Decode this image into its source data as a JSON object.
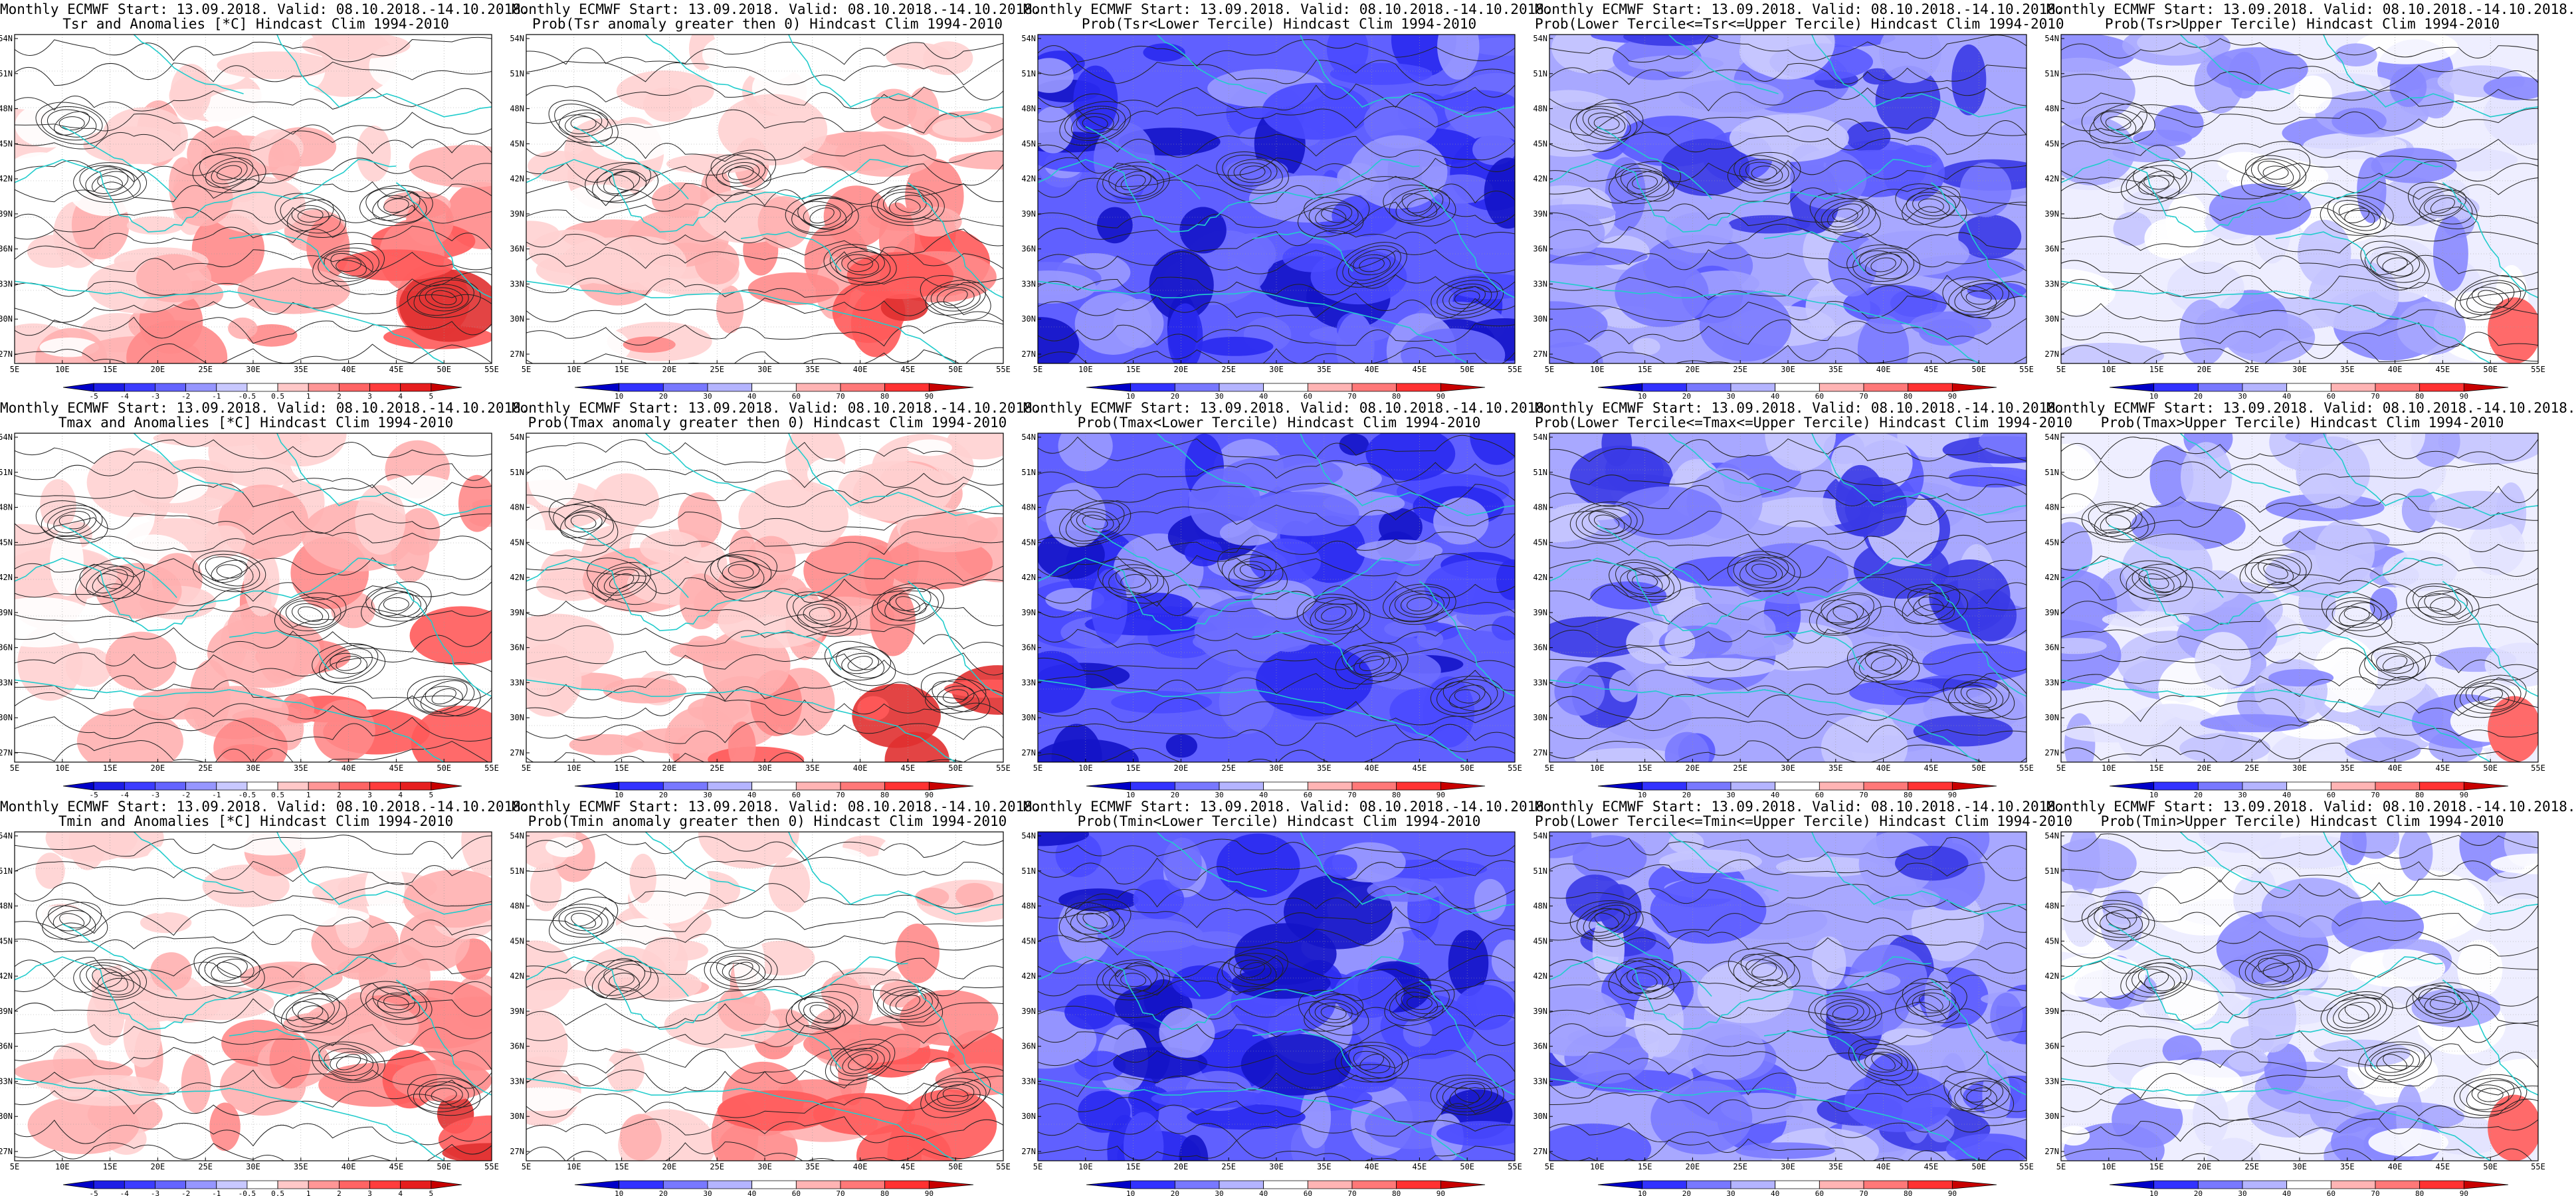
{
  "lat_ticks": [
    "54N",
    "51N",
    "48N",
    "45N",
    "42N",
    "39N",
    "36N",
    "33N",
    "30N",
    "27N"
  ],
  "lon_ticks": [
    "5E",
    "10E",
    "15E",
    "20E",
    "25E",
    "30E",
    "35E",
    "40E",
    "45E",
    "50E",
    "55E"
  ],
  "colorbars": {
    "anomaly": {
      "labels": [
        "-5",
        "-4",
        "-3",
        "-2",
        "-1",
        "-0.5",
        "0.5",
        "1",
        "2",
        "3",
        "4",
        "5"
      ],
      "colors": [
        "#0000c8",
        "#1e1ee6",
        "#3c3cff",
        "#6464ff",
        "#9696ff",
        "#c8c8ff",
        "#ffffff",
        "#ffc8c8",
        "#ff9696",
        "#ff6464",
        "#ff3c3c",
        "#e61e1e",
        "#c80000"
      ]
    },
    "prob": {
      "labels": [
        "10",
        "20",
        "30",
        "40",
        "60",
        "70",
        "80",
        "90"
      ],
      "colors": [
        "#0000c8",
        "#3232ff",
        "#7878ff",
        "#b4b4ff",
        "#ffffff",
        "#ffb4b4",
        "#ff7878",
        "#ff3232",
        "#c80000"
      ]
    }
  },
  "panels": [
    {
      "line1": "Monthly ECMWF Start: 13.09.2018. Valid: 08.10.2018.-14.10.2018.",
      "line2": "Tsr and Anomalies [*C] Hindcast Clim 1994-2010",
      "kind": "anomaly",
      "tone": "warm"
    },
    {
      "line1": "Monthly ECMWF Start: 13.09.2018. Valid: 08.10.2018.-14.10.2018.",
      "line2": "Prob(Tsr anomaly greater then 0) Hindcast Clim 1994-2010",
      "kind": "prob",
      "tone": "warm"
    },
    {
      "line1": "Monthly ECMWF Start: 13.09.2018. Valid: 08.10.2018.-14.10.2018.",
      "line2": "Prob(Tsr<Lower Tercile) Hindcast Clim 1994-2010",
      "kind": "prob",
      "tone": "cold"
    },
    {
      "line1": "Monthly ECMWF Start: 13.09.2018. Valid: 08.10.2018.-14.10.2018.",
      "line2": "Prob(Lower Tercile<=Tsr<=Upper Tercile) Hindcast Clim 1994-2010",
      "kind": "prob",
      "tone": "mid"
    },
    {
      "line1": "Monthly ECMWF Start: 13.09.2018. Valid: 08.10.2018.-14.10.2018.",
      "line2": "Prob(Tsr>Upper Tercile) Hindcast Clim 1994-2010",
      "kind": "prob",
      "tone": "upper"
    },
    {
      "line1": "Monthly ECMWF Start: 13.09.2018. Valid: 08.10.2018.-14.10.2018.",
      "line2": "Tmax and Anomalies [*C] Hindcast Clim 1994-2010",
      "kind": "anomaly",
      "tone": "warm"
    },
    {
      "line1": "Monthly ECMWF Start: 13.09.2018. Valid: 08.10.2018.-14.10.2018.",
      "line2": "Prob(Tmax anomaly greater then 0) Hindcast Clim 1994-2010",
      "kind": "prob",
      "tone": "warm"
    },
    {
      "line1": "Monthly ECMWF Start: 13.09.2018. Valid: 08.10.2018.-14.10.2018.",
      "line2": "Prob(Tmax<Lower Tercile) Hindcast Clim 1994-2010",
      "kind": "prob",
      "tone": "cold"
    },
    {
      "line1": "Monthly ECMWF Start: 13.09.2018. Valid: 08.10.2018.-14.10.2018.",
      "line2": "Prob(Lower Tercile<=Tmax<=Upper Tercile) Hindcast Clim 1994-2010",
      "kind": "prob",
      "tone": "mid"
    },
    {
      "line1": "Monthly ECMWF Start: 13.09.2018. Valid: 08.10.2018.-14.10.2018.",
      "line2": "Prob(Tmax>Upper Tercile) Hindcast Clim 1994-2010",
      "kind": "prob",
      "tone": "upper"
    },
    {
      "line1": "Monthly ECMWF Start: 13.09.2018. Valid: 08.10.2018.-14.10.2018.",
      "line2": "Tmin and Anomalies [*C] Hindcast Clim 1994-2010",
      "kind": "anomaly",
      "tone": "warm"
    },
    {
      "line1": "Monthly ECMWF Start: 13.09.2018. Valid: 08.10.2018.-14.10.2018.",
      "line2": "Prob(Tmin anomaly greater then 0) Hindcast Clim 1994-2010",
      "kind": "prob",
      "tone": "warm"
    },
    {
      "line1": "Monthly ECMWF Start: 13.09.2018. Valid: 08.10.2018.-14.10.2018.",
      "line2": "Prob(Tmin<Lower Tercile) Hindcast Clim 1994-2010",
      "kind": "prob",
      "tone": "cold"
    },
    {
      "line1": "Monthly ECMWF Start: 13.09.2018. Valid: 08.10.2018.-14.10.2018.",
      "line2": "Prob(Lower Tercile<=Tmin<=Upper Tercile) Hindcast Clim 1994-2010",
      "kind": "prob",
      "tone": "mid"
    },
    {
      "line1": "Monthly ECMWF Start: 13.09.2018. Valid: 08.10.2018.-14.10.2018.",
      "line2": "Prob(Tmin>Upper Tercile) Hindcast Clim 1994-2010",
      "kind": "prob",
      "tone": "upper"
    }
  ]
}
